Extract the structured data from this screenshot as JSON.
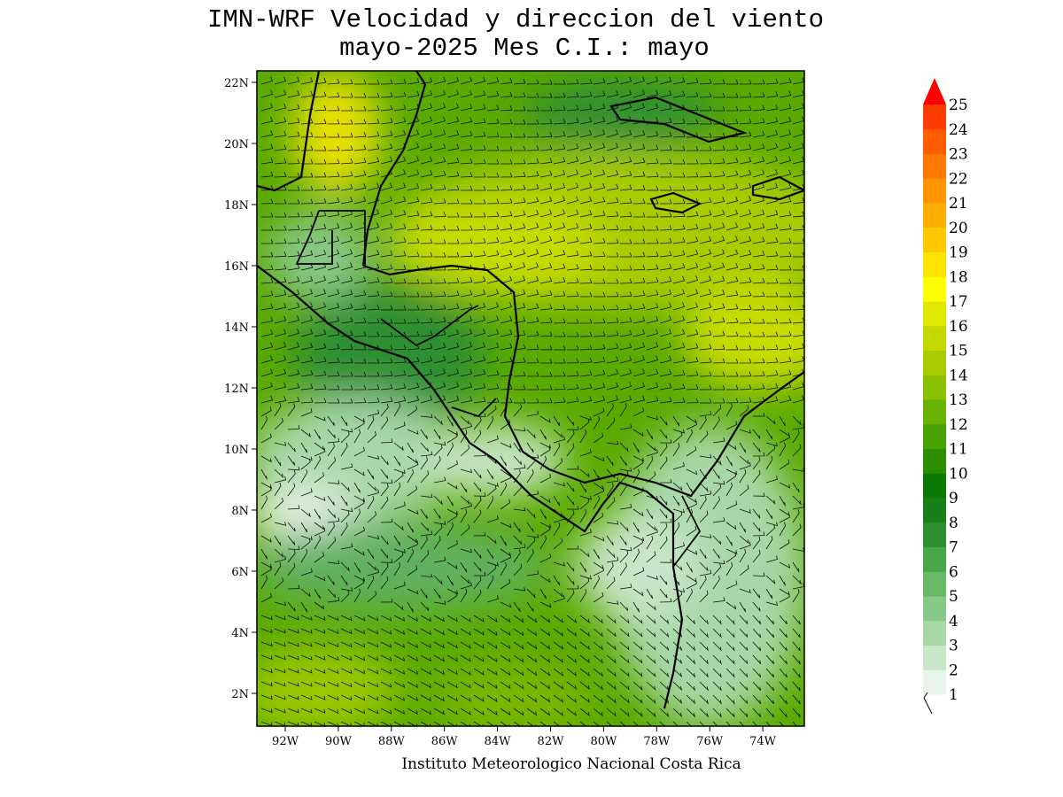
{
  "header": {
    "title": "IMN-WRF Velocidad y direccion del viento",
    "subtitle": "mayo-2025 Mes C.I.: mayo"
  },
  "map": {
    "lat_labels": [
      "22N",
      "20N",
      "18N",
      "16N",
      "14N",
      "12N",
      "10N",
      "8N",
      "6N",
      "4N",
      "2N"
    ],
    "lon_labels": [
      "92W",
      "90W",
      "88W",
      "86W",
      "84W",
      "82W",
      "80W",
      "78W",
      "76W",
      "74W"
    ]
  },
  "colorbar": {
    "levels": [
      1,
      2,
      3,
      4,
      5,
      6,
      7,
      8,
      9,
      10,
      11,
      12,
      13,
      14,
      15,
      16,
      17,
      18,
      19,
      20,
      21,
      22,
      23,
      24,
      25
    ]
  },
  "footer": "Instituto Meteorologico Nacional Costa Rica"
}
